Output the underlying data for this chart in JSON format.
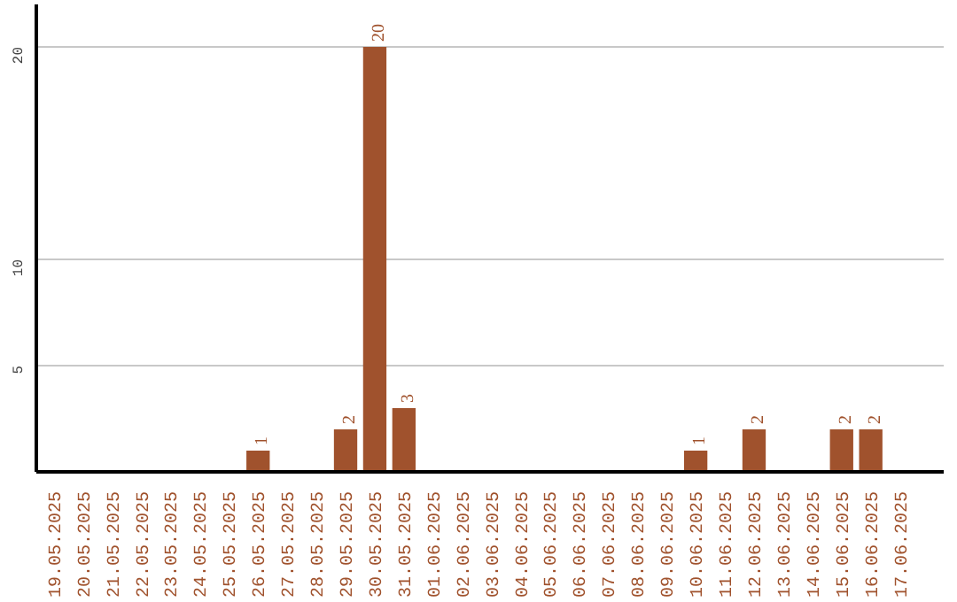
{
  "chart_data": {
    "type": "bar",
    "categories": [
      "19.05.2025",
      "20.05.2025",
      "21.05.2025",
      "22.05.2025",
      "23.05.2025",
      "24.05.2025",
      "25.05.2025",
      "26.05.2025",
      "27.05.2025",
      "28.05.2025",
      "29.05.2025",
      "30.05.2025",
      "31.05.2025",
      "01.06.2025",
      "02.06.2025",
      "03.06.2025",
      "04.06.2025",
      "05.06.2025",
      "06.06.2025",
      "07.06.2025",
      "08.06.2025",
      "09.06.2025",
      "10.06.2025",
      "11.06.2025",
      "12.06.2025",
      "13.06.2025",
      "14.06.2025",
      "15.06.2025",
      "16.06.2025",
      "17.06.2025"
    ],
    "values": [
      0,
      0,
      0,
      0,
      0,
      0,
      0,
      1,
      0,
      0,
      2,
      20,
      3,
      0,
      0,
      0,
      0,
      0,
      0,
      0,
      0,
      0,
      1,
      0,
      2,
      0,
      0,
      2,
      2,
      0
    ],
    "value_labels": [
      null,
      null,
      null,
      null,
      null,
      null,
      null,
      "1",
      null,
      null,
      "2",
      "20",
      "3",
      null,
      null,
      null,
      null,
      null,
      null,
      null,
      null,
      null,
      "1",
      null,
      "2",
      null,
      null,
      "2",
      "2",
      null
    ],
    "color": "#a0522d",
    "ylim": [
      0,
      22
    ],
    "yticks": [
      5,
      10,
      20
    ],
    "grid": "y"
  }
}
